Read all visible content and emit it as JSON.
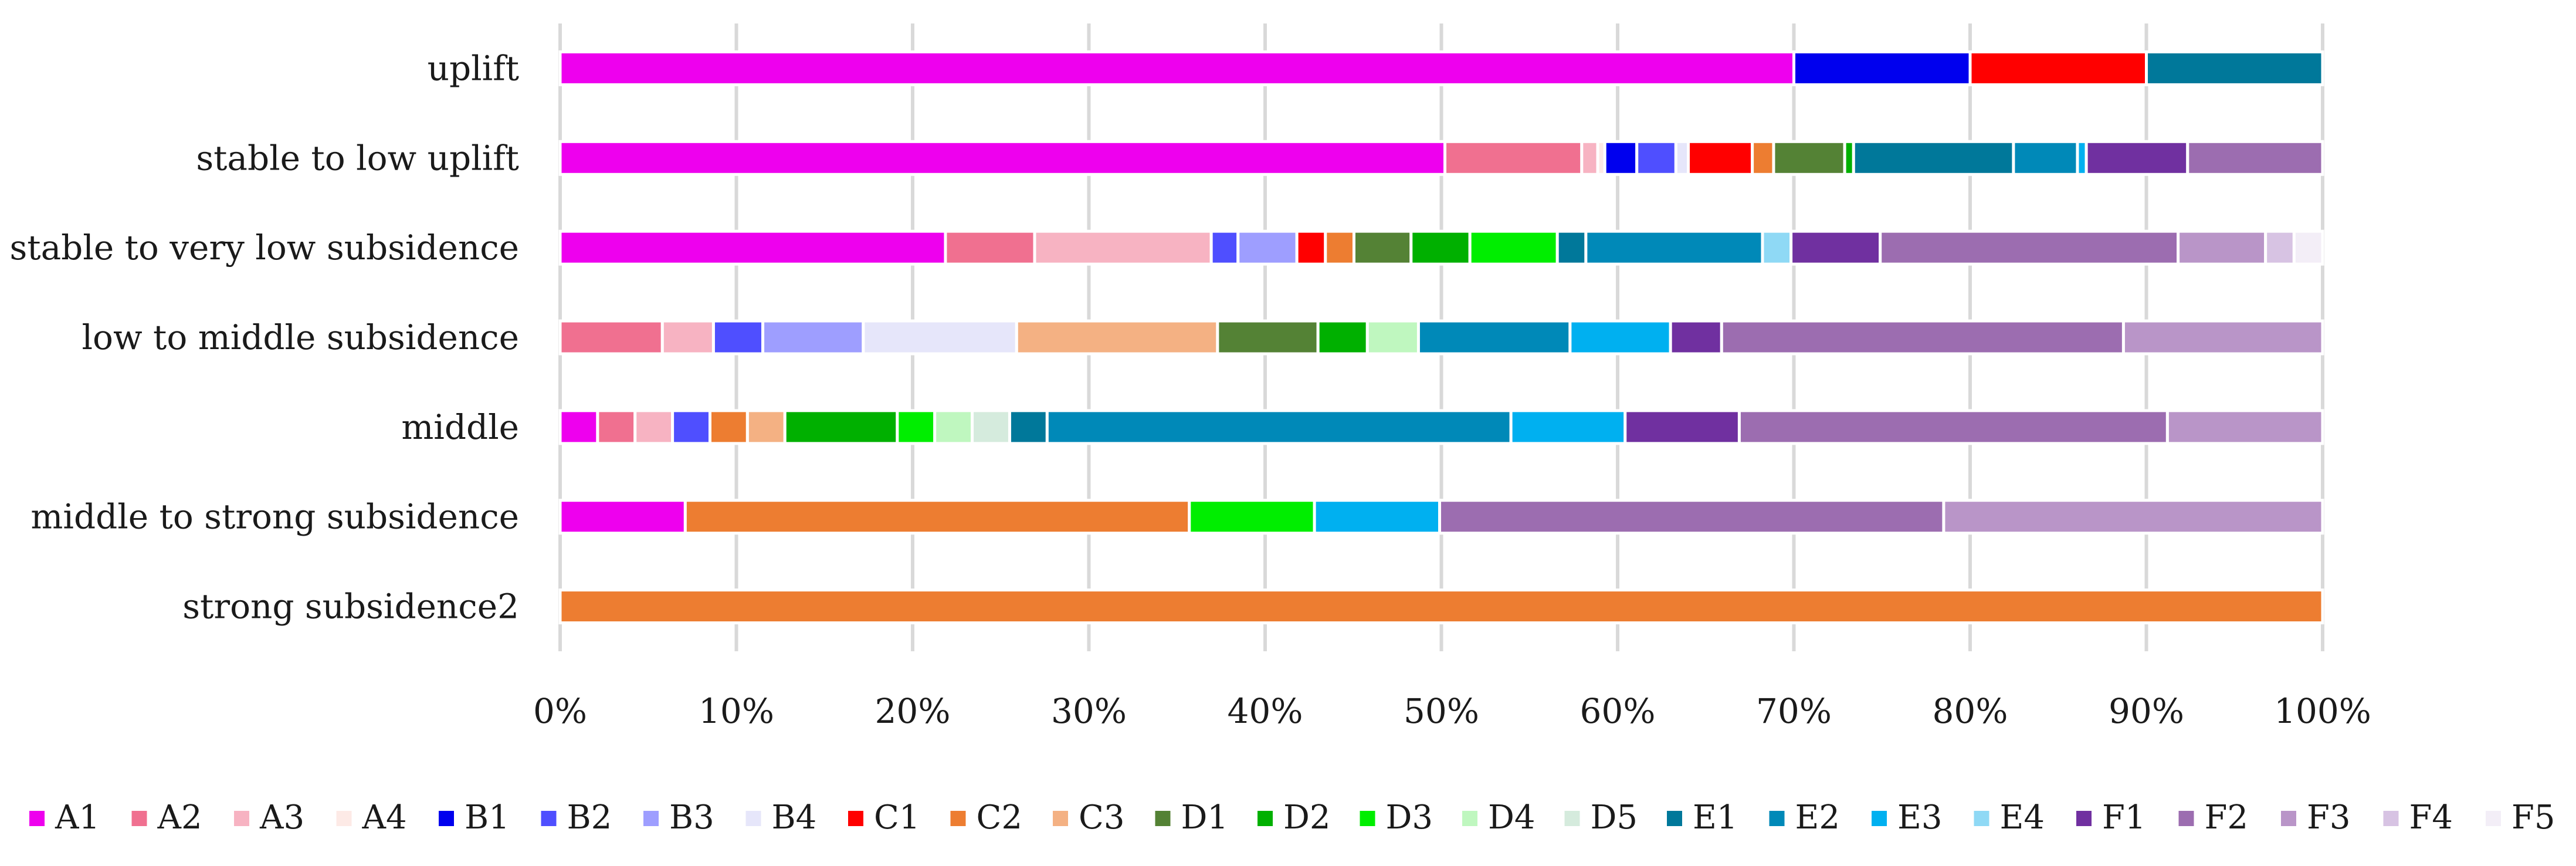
{
  "chart_data": {
    "type": "bar",
    "orientation": "horizontal",
    "stacked": "percent",
    "title": "",
    "xlabel": "",
    "ylabel": "",
    "xlim": [
      0,
      100
    ],
    "x_ticks": [
      "0%",
      "10%",
      "20%",
      "30%",
      "40%",
      "50%",
      "60%",
      "70%",
      "80%",
      "90%",
      "100%"
    ],
    "grid": "vertical",
    "legend_position": "bottom",
    "categories": [
      "uplift",
      "stable to low uplift",
      "stable to very low subsidence",
      "low to middle subsidence",
      "middle",
      "middle to strong subsidence",
      "strong subsidence2"
    ],
    "series": [
      {
        "name": "A1",
        "color": "#EE00EE",
        "values": [
          70,
          49.8,
          21.6,
          0,
          2.1,
          7.1,
          0
        ]
      },
      {
        "name": "A2",
        "color": "#F07090",
        "values": [
          0,
          7.7,
          5.0,
          5.8,
          2.1,
          0,
          0
        ]
      },
      {
        "name": "A3",
        "color": "#F7B3C2",
        "values": [
          0,
          0.9,
          9.9,
          2.9,
          2.1,
          0,
          0
        ]
      },
      {
        "name": "A4",
        "color": "#FDEAE6",
        "values": [
          0,
          0.4,
          0,
          0,
          0,
          0,
          0
        ]
      },
      {
        "name": "B1",
        "color": "#0000EE",
        "values": [
          10,
          1.8,
          0,
          0,
          0,
          0,
          0
        ]
      },
      {
        "name": "B2",
        "color": "#4F4FFF",
        "values": [
          0,
          2.2,
          1.5,
          2.8,
          2.1,
          0,
          0
        ]
      },
      {
        "name": "B3",
        "color": "#9E9EFF",
        "values": [
          0,
          0,
          3.3,
          5.7,
          0,
          0,
          0
        ]
      },
      {
        "name": "B4",
        "color": "#E6E6FA",
        "values": [
          0,
          0.7,
          0,
          8.7,
          0,
          0,
          0
        ]
      },
      {
        "name": "C1",
        "color": "#FF0000",
        "values": [
          10,
          3.6,
          1.6,
          0,
          0,
          0,
          0
        ]
      },
      {
        "name": "C2",
        "color": "#ED7D31",
        "values": [
          0,
          1.2,
          1.6,
          0,
          2.1,
          28.6,
          100
        ]
      },
      {
        "name": "C3",
        "color": "#F4B183",
        "values": [
          0,
          0,
          0,
          11.4,
          2.1,
          0,
          0
        ]
      },
      {
        "name": "D1",
        "color": "#548235",
        "values": [
          0,
          4.0,
          3.2,
          5.7,
          0,
          0,
          0
        ]
      },
      {
        "name": "D2",
        "color": "#00B000",
        "values": [
          0,
          0.5,
          3.3,
          2.8,
          6.3,
          0,
          0
        ]
      },
      {
        "name": "D3",
        "color": "#00EE00",
        "values": [
          0,
          0,
          4.9,
          0,
          2.1,
          7.1,
          0
        ]
      },
      {
        "name": "D4",
        "color": "#BFF7BF",
        "values": [
          0,
          0,
          0,
          2.9,
          2.1,
          0,
          0
        ]
      },
      {
        "name": "D5",
        "color": "#D5EBDD",
        "values": [
          0,
          0,
          0,
          0,
          2.1,
          0,
          0
        ]
      },
      {
        "name": "E1",
        "color": "#00789A",
        "values": [
          10,
          9.0,
          1.6,
          0,
          2.1,
          0,
          0
        ]
      },
      {
        "name": "E2",
        "color": "#0089B8",
        "values": [
          0,
          3.6,
          9.9,
          8.6,
          26.0,
          0,
          0
        ]
      },
      {
        "name": "E3",
        "color": "#00B0F0",
        "values": [
          0,
          0.5,
          0,
          5.7,
          6.4,
          7.1,
          0
        ]
      },
      {
        "name": "E4",
        "color": "#8FD9F5",
        "values": [
          0,
          0,
          1.6,
          0,
          0,
          0,
          0
        ]
      },
      {
        "name": "F1",
        "color": "#7030A0",
        "values": [
          0,
          5.7,
          5.0,
          2.9,
          6.4,
          0,
          0
        ]
      },
      {
        "name": "F2",
        "color": "#9C6DB0",
        "values": [
          0,
          7.6,
          16.7,
          22.8,
          24.0,
          28.6,
          0
        ]
      },
      {
        "name": "F3",
        "color": "#B995C8",
        "values": [
          0,
          0,
          4.9,
          11.3,
          8.7,
          21.5,
          0
        ]
      },
      {
        "name": "F4",
        "color": "#D7C3E3",
        "values": [
          0,
          0,
          1.6,
          0,
          0,
          0,
          0
        ]
      },
      {
        "name": "F5",
        "color": "#F3EEF7",
        "values": [
          0,
          0,
          1.6,
          0,
          0,
          0,
          0
        ]
      }
    ]
  }
}
